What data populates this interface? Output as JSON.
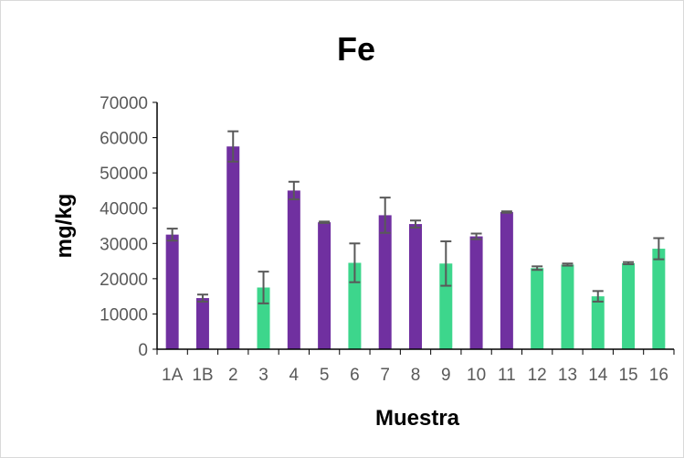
{
  "chart_data": {
    "type": "bar",
    "title": "Fe",
    "xlabel": "Muestra",
    "ylabel": "mg/kg",
    "ylim": [
      0,
      70000
    ],
    "yticks": [
      0,
      10000,
      20000,
      30000,
      40000,
      50000,
      60000,
      70000
    ],
    "grid": false,
    "legend": "none",
    "categories": [
      "1A",
      "1B",
      "2",
      "3",
      "4",
      "5",
      "6",
      "7",
      "8",
      "9",
      "10",
      "11",
      "12",
      "13",
      "14",
      "15",
      "16"
    ],
    "values": [
      32500,
      14500,
      57500,
      17500,
      45000,
      36000,
      24500,
      38000,
      35500,
      24300,
      32000,
      38900,
      23000,
      24000,
      15000,
      24400,
      28500
    ],
    "errors": [
      1700,
      1000,
      4300,
      4500,
      2500,
      200,
      5500,
      5000,
      1000,
      6300,
      800,
      200,
      500,
      300,
      1500,
      300,
      3000
    ],
    "bar_colors": [
      "#7030a0",
      "#7030a0",
      "#7030a0",
      "#3dd68c",
      "#7030a0",
      "#7030a0",
      "#3dd68c",
      "#7030a0",
      "#7030a0",
      "#3dd68c",
      "#7030a0",
      "#7030a0",
      "#3dd68c",
      "#3dd68c",
      "#3dd68c",
      "#3dd68c",
      "#3dd68c"
    ],
    "error_bar_color": "#595959",
    "axis_color": "#000000"
  }
}
